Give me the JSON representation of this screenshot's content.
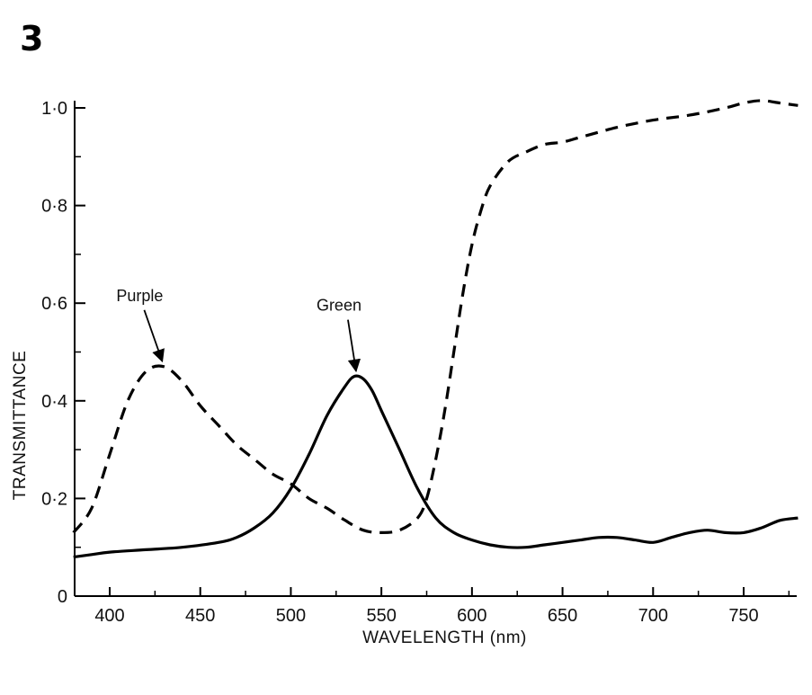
{
  "figure_number": "3",
  "chart_data": {
    "type": "line",
    "title": "",
    "xlabel": "WAVELENGTH (nm)",
    "ylabel": "TRANSMITTANCE",
    "xlim": [
      380,
      790
    ],
    "ylim": [
      0,
      1.0
    ],
    "x_ticks": [
      400,
      450,
      500,
      550,
      600,
      650,
      700,
      750
    ],
    "x_tick_labels": [
      "400",
      "450",
      "500",
      "550",
      "600",
      "650",
      "700",
      "750"
    ],
    "y_ticks": [
      0,
      0.2,
      0.4,
      0.6,
      0.8,
      1.0
    ],
    "y_tick_labels": [
      "0",
      "0·2",
      "0·4",
      "0·6",
      "0·8",
      "1·0"
    ],
    "grid": false,
    "legend": "none",
    "series": [
      {
        "name": "Purple",
        "style": "dashed",
        "color": "#000000",
        "x": [
          380,
          390,
          400,
          410,
          420,
          430,
          440,
          450,
          460,
          470,
          480,
          490,
          500,
          510,
          520,
          530,
          540,
          550,
          560,
          570,
          575,
          580,
          585,
          590,
          595,
          600,
          605,
          610,
          620,
          630,
          640,
          650,
          660,
          680,
          700,
          720,
          740,
          750,
          760,
          770,
          780
        ],
        "y": [
          0.13,
          0.18,
          0.29,
          0.4,
          0.46,
          0.47,
          0.44,
          0.39,
          0.35,
          0.31,
          0.28,
          0.25,
          0.23,
          0.2,
          0.18,
          0.155,
          0.135,
          0.13,
          0.135,
          0.16,
          0.2,
          0.28,
          0.38,
          0.5,
          0.62,
          0.72,
          0.79,
          0.84,
          0.89,
          0.91,
          0.925,
          0.93,
          0.94,
          0.96,
          0.975,
          0.985,
          1.0,
          1.01,
          1.015,
          1.01,
          1.005
        ]
      },
      {
        "name": "Green",
        "style": "solid",
        "color": "#000000",
        "x": [
          380,
          390,
          400,
          420,
          440,
          460,
          470,
          480,
          490,
          500,
          510,
          520,
          530,
          535,
          540,
          545,
          550,
          560,
          570,
          580,
          590,
          600,
          610,
          620,
          630,
          640,
          650,
          660,
          670,
          680,
          690,
          700,
          710,
          720,
          730,
          740,
          750,
          760,
          770,
          780
        ],
        "y": [
          0.08,
          0.085,
          0.09,
          0.095,
          0.1,
          0.11,
          0.12,
          0.14,
          0.17,
          0.22,
          0.29,
          0.37,
          0.43,
          0.45,
          0.445,
          0.42,
          0.38,
          0.3,
          0.22,
          0.16,
          0.13,
          0.115,
          0.105,
          0.1,
          0.1,
          0.105,
          0.11,
          0.115,
          0.12,
          0.12,
          0.115,
          0.11,
          0.12,
          0.13,
          0.135,
          0.13,
          0.13,
          0.14,
          0.155,
          0.16
        ]
      }
    ],
    "annotations": [
      {
        "text": "Purple",
        "points_to": [
          430,
          0.47
        ]
      },
      {
        "text": "Green",
        "points_to": [
          537,
          0.45
        ]
      }
    ]
  }
}
